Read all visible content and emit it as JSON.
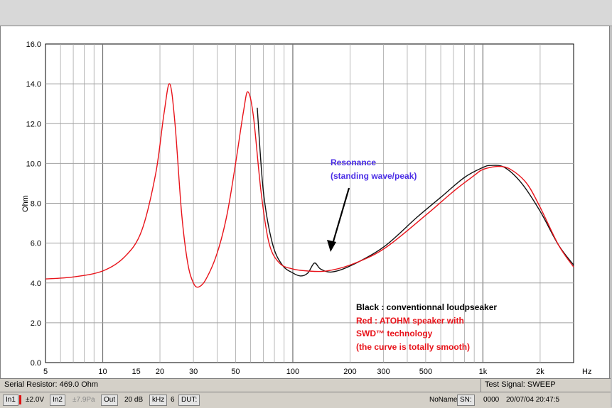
{
  "chart_data": {
    "type": "line",
    "xlabel": "",
    "ylabel": "Ohm",
    "x_unit": "Hz",
    "xscale": "log",
    "xlim": [
      5,
      3000
    ],
    "ylim": [
      0,
      16
    ],
    "grid": true,
    "y_ticks": [
      "0.0",
      "2.0",
      "4.0",
      "6.0",
      "8.0",
      "10.0",
      "12.0",
      "14.0",
      "16.0"
    ],
    "x_ticks": [
      {
        "label": "5",
        "value": 5
      },
      {
        "label": "10",
        "value": 10
      },
      {
        "label": "15",
        "value": 15
      },
      {
        "label": "20",
        "value": 20
      },
      {
        "label": "30",
        "value": 30
      },
      {
        "label": "50",
        "value": 50
      },
      {
        "label": "100",
        "value": 100
      },
      {
        "label": "200",
        "value": 200
      },
      {
        "label": "300",
        "value": 300
      },
      {
        "label": "500",
        "value": 500
      },
      {
        "label": "1k",
        "value": 1000
      },
      {
        "label": "2k",
        "value": 2000
      }
    ],
    "series": [
      {
        "name": "Red : ATOHM speaker with SWD™ technology",
        "color": "#e8141b",
        "points": [
          [
            5,
            4.2
          ],
          [
            7,
            4.3
          ],
          [
            10,
            4.6
          ],
          [
            13,
            5.3
          ],
          [
            16,
            6.6
          ],
          [
            19,
            9.5
          ],
          [
            21,
            12.5
          ],
          [
            22.5,
            14.0
          ],
          [
            24,
            12.0
          ],
          [
            26,
            7.5
          ],
          [
            28,
            5.0
          ],
          [
            30,
            4.0
          ],
          [
            32,
            3.8
          ],
          [
            35,
            4.2
          ],
          [
            40,
            5.5
          ],
          [
            45,
            7.4
          ],
          [
            50,
            10.0
          ],
          [
            55,
            12.6
          ],
          [
            58,
            13.6
          ],
          [
            62,
            12.4
          ],
          [
            68,
            8.6
          ],
          [
            75,
            6.0
          ],
          [
            85,
            5.0
          ],
          [
            100,
            4.7
          ],
          [
            120,
            4.6
          ],
          [
            150,
            4.6
          ],
          [
            200,
            4.9
          ],
          [
            300,
            5.7
          ],
          [
            500,
            7.4
          ],
          [
            700,
            8.6
          ],
          [
            900,
            9.4
          ],
          [
            1000,
            9.7
          ],
          [
            1200,
            9.85
          ],
          [
            1400,
            9.7
          ],
          [
            1700,
            9.0
          ],
          [
            2000,
            7.8
          ],
          [
            2500,
            5.9
          ],
          [
            3000,
            4.8
          ]
        ]
      },
      {
        "name": "Black : conventionnal loudpseaker",
        "color": "#111111",
        "points": [
          [
            65,
            12.8
          ],
          [
            70,
            8.6
          ],
          [
            78,
            6.0
          ],
          [
            88,
            4.9
          ],
          [
            100,
            4.5
          ],
          [
            110,
            4.35
          ],
          [
            120,
            4.5
          ],
          [
            130,
            5.0
          ],
          [
            140,
            4.7
          ],
          [
            160,
            4.55
          ],
          [
            200,
            4.85
          ],
          [
            300,
            5.8
          ],
          [
            450,
            7.3
          ],
          [
            600,
            8.3
          ],
          [
            800,
            9.3
          ],
          [
            1000,
            9.8
          ],
          [
            1100,
            9.9
          ],
          [
            1300,
            9.8
          ],
          [
            1600,
            9.0
          ],
          [
            2000,
            7.6
          ],
          [
            2500,
            5.9
          ],
          [
            3000,
            4.9
          ]
        ]
      }
    ],
    "annotations": {
      "resonance_line1": "Resonance",
      "resonance_line2": "(standing wave/peak)",
      "legend_black": "Black : conventionnal loudpseaker",
      "legend_red_line1": "Red : ATOHM speaker with",
      "legend_red_line2": "SWD™ technology",
      "legend_red_line3": "(the curve is totally smooth)",
      "arrow_target": {
        "x": 135,
        "y": 5.0
      }
    },
    "colors": {
      "annotation_blue": "#4b2ee6",
      "legend_red": "#e8141b",
      "legend_black": "#000000"
    }
  },
  "status": {
    "serial_resistor": "Serial Resistor: 469.0 Ohm",
    "test_signal": "Test Signal: SWEEP",
    "in1": "In1",
    "in1_range": "±2.0V",
    "in2": "In2",
    "in2_range": "±7.9Pa",
    "out": "Out",
    "db": "20 dB",
    "khz": "kHz",
    "six": "6",
    "dut": "DUT:",
    "noname": "NoName",
    "sn": "SN:",
    "serial_num": "0000",
    "datetime": "20/07/04  20:47:5"
  }
}
